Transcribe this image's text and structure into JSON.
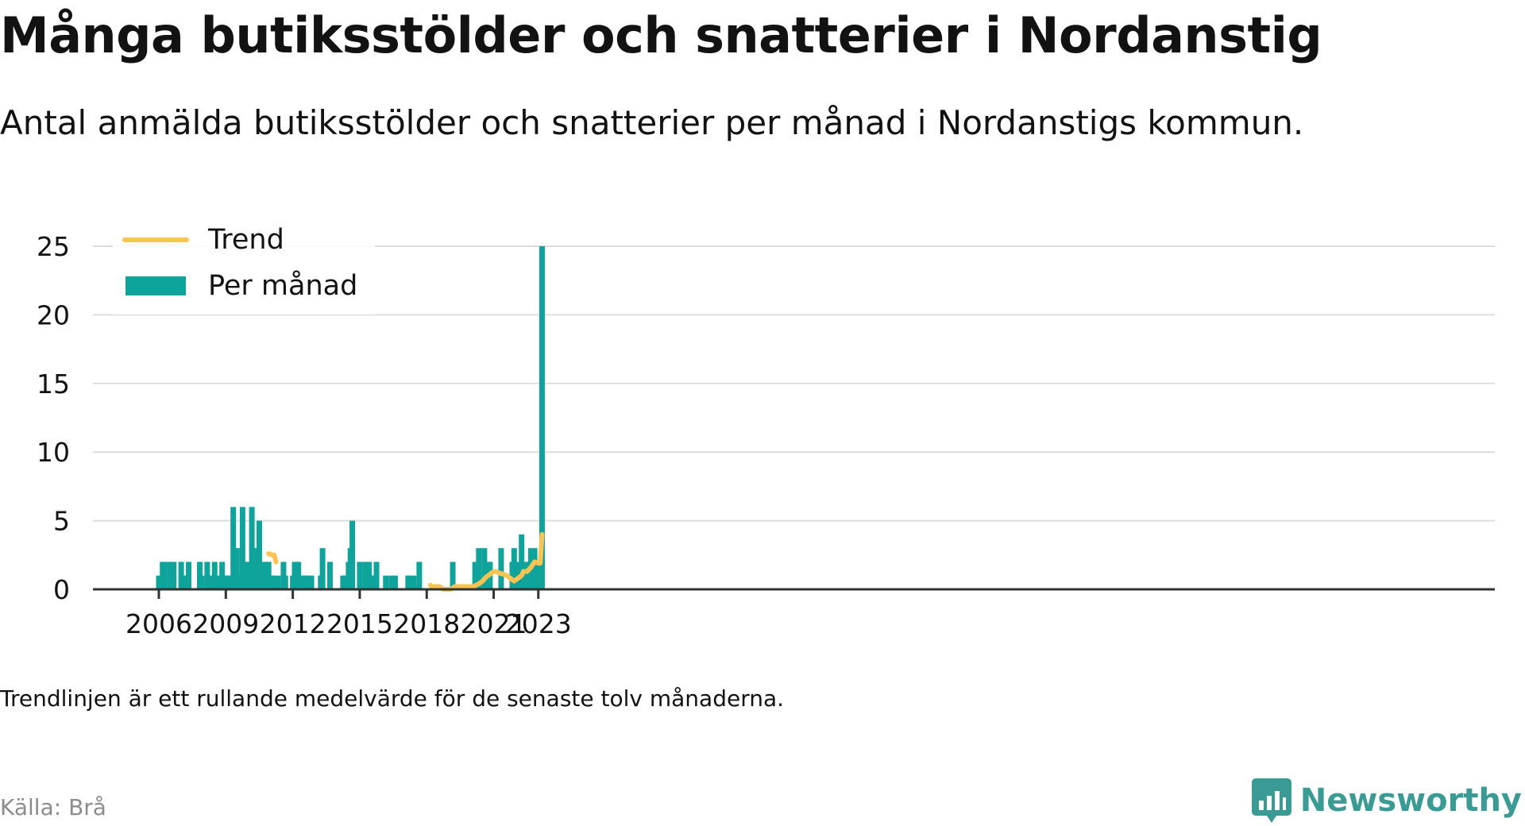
{
  "title": "Många butiksstölder och snatterier i Nordanstig",
  "subtitle": "Antal anmälda butiksstölder och snatterier per månad i Nordanstigs kommun.",
  "footnote": "Trendlinjen är ett rullande medelvärde för de senaste tolv månaderna.",
  "source": "Källa: Brå",
  "brand": {
    "name": "Newsworthy",
    "icon": "newsworthy-logo-icon"
  },
  "colors": {
    "bar": "#0ea39b",
    "trend": "#f9c451",
    "grid": "#dddddd",
    "axis": "#333333",
    "text": "#121212"
  },
  "legend": [
    {
      "label": "Trend",
      "kind": "line",
      "color": "#f9c451"
    },
    {
      "label": "Per månad",
      "kind": "bar",
      "color": "#0ea39b"
    }
  ],
  "chart_data": {
    "type": "bar",
    "x_unit": "month",
    "x_start": "2006-01",
    "x_end": "2023-02",
    "x_ticks": [
      "2006",
      "2009",
      "2012",
      "2015",
      "2018",
      "2021",
      "2023"
    ],
    "y_ticks": [
      0,
      5,
      10,
      15,
      20,
      25
    ],
    "ylim": [
      0,
      25
    ],
    "grid": "horizontal",
    "legend_position": "top-left",
    "series": [
      {
        "name": "Per månad",
        "kind": "bar",
        "points": [
          [
            "2006-01",
            1
          ],
          [
            "2006-03",
            2
          ],
          [
            "2006-04",
            2
          ],
          [
            "2006-07",
            2
          ],
          [
            "2006-08",
            1
          ],
          [
            "2006-09",
            2
          ],
          [
            "2007-01",
            2
          ],
          [
            "2007-02",
            1
          ],
          [
            "2007-03",
            1
          ],
          [
            "2007-04",
            1
          ],
          [
            "2007-05",
            2
          ],
          [
            "2007-11",
            2
          ],
          [
            "2007-12",
            1
          ],
          [
            "2008-03",
            2
          ],
          [
            "2008-05",
            1
          ],
          [
            "2008-07",
            2
          ],
          [
            "2008-08",
            1
          ],
          [
            "2008-10",
            1
          ],
          [
            "2008-11",
            2
          ],
          [
            "2009-01",
            1
          ],
          [
            "2009-02",
            1
          ],
          [
            "2009-03",
            1
          ],
          [
            "2009-05",
            6
          ],
          [
            "2009-06",
            3
          ],
          [
            "2009-07",
            3
          ],
          [
            "2009-09",
            1
          ],
          [
            "2009-10",
            6
          ],
          [
            "2009-11",
            2
          ],
          [
            "2010-01",
            2
          ],
          [
            "2010-03",
            6
          ],
          [
            "2010-04",
            3
          ],
          [
            "2010-05",
            3
          ],
          [
            "2010-06",
            2
          ],
          [
            "2010-07",
            5
          ],
          [
            "2010-08",
            1
          ],
          [
            "2010-09",
            1
          ],
          [
            "2010-10",
            2
          ],
          [
            "2010-11",
            2
          ],
          [
            "2010-12",
            2
          ],
          [
            "2011-01",
            1
          ],
          [
            "2011-02",
            1
          ],
          [
            "2011-03",
            1
          ],
          [
            "2011-05",
            1
          ],
          [
            "2011-08",
            2
          ],
          [
            "2011-09",
            1
          ],
          [
            "2012-01",
            1
          ],
          [
            "2012-02",
            2
          ],
          [
            "2012-03",
            2
          ],
          [
            "2012-04",
            2
          ],
          [
            "2012-06",
            1
          ],
          [
            "2012-07",
            1
          ],
          [
            "2012-08",
            1
          ],
          [
            "2012-09",
            1
          ],
          [
            "2012-11",
            1
          ],
          [
            "2013-04",
            1
          ],
          [
            "2013-05",
            3
          ],
          [
            "2013-09",
            2
          ],
          [
            "2014-04",
            1
          ],
          [
            "2014-05",
            1
          ],
          [
            "2014-07",
            2
          ],
          [
            "2014-08",
            3
          ],
          [
            "2014-09",
            5
          ],
          [
            "2015-01",
            2
          ],
          [
            "2015-04",
            2
          ],
          [
            "2015-05",
            1
          ],
          [
            "2015-06",
            2
          ],
          [
            "2015-07",
            1
          ],
          [
            "2015-08",
            1
          ],
          [
            "2015-10",
            2
          ],
          [
            "2016-03",
            1
          ],
          [
            "2016-06",
            1
          ],
          [
            "2016-08",
            1
          ],
          [
            "2017-03",
            1
          ],
          [
            "2017-04",
            1
          ],
          [
            "2017-06",
            1
          ],
          [
            "2017-09",
            2
          ],
          [
            "2019-03",
            2
          ],
          [
            "2020-03",
            2
          ],
          [
            "2020-05",
            3
          ],
          [
            "2020-08",
            3
          ],
          [
            "2020-10",
            2
          ],
          [
            "2020-11",
            2
          ],
          [
            "2021-05",
            3
          ],
          [
            "2021-11",
            2
          ],
          [
            "2021-12",
            3
          ],
          [
            "2022-02",
            2
          ],
          [
            "2022-04",
            4
          ],
          [
            "2022-05",
            2
          ],
          [
            "2022-06",
            2
          ],
          [
            "2022-07",
            2
          ],
          [
            "2022-08",
            1
          ],
          [
            "2022-09",
            3
          ],
          [
            "2022-10",
            2
          ],
          [
            "2022-11",
            3
          ],
          [
            "2023-01",
            2
          ],
          [
            "2023-02",
            1
          ],
          [
            "2023-03",
            25
          ]
        ]
      },
      {
        "name": "Trend",
        "kind": "line",
        "segments": [
          [
            [
              "2010-12",
              2.6
            ],
            [
              "2011-02",
              2.5
            ],
            [
              "2011-03",
              2.5
            ],
            [
              "2011-04",
              2.0
            ]
          ],
          [
            [
              "2018-03",
              0.3
            ],
            [
              "2018-04",
              0.2
            ],
            [
              "2018-08",
              0.2
            ],
            [
              "2018-10",
              0.0
            ],
            [
              "2019-02",
              0.0
            ],
            [
              "2019-04",
              0.2
            ],
            [
              "2020-02",
              0.2
            ],
            [
              "2020-05",
              0.4
            ],
            [
              "2020-07",
              0.6
            ],
            [
              "2020-09",
              0.9
            ],
            [
              "2020-11",
              1.1
            ],
            [
              "2021-01",
              1.3
            ],
            [
              "2021-02",
              1.3
            ],
            [
              "2021-04",
              1.2
            ],
            [
              "2021-06",
              1.1
            ],
            [
              "2021-08",
              1.0
            ],
            [
              "2021-10",
              0.8
            ],
            [
              "2021-12",
              0.6
            ],
            [
              "2022-02",
              0.8
            ],
            [
              "2022-04",
              1.0
            ],
            [
              "2022-05",
              1.3
            ],
            [
              "2022-07",
              1.3
            ],
            [
              "2022-09",
              1.6
            ],
            [
              "2022-11",
              2.0
            ],
            [
              "2023-01",
              1.9
            ],
            [
              "2023-02",
              1.9
            ],
            [
              "2023-03",
              4.0
            ]
          ]
        ]
      }
    ]
  }
}
